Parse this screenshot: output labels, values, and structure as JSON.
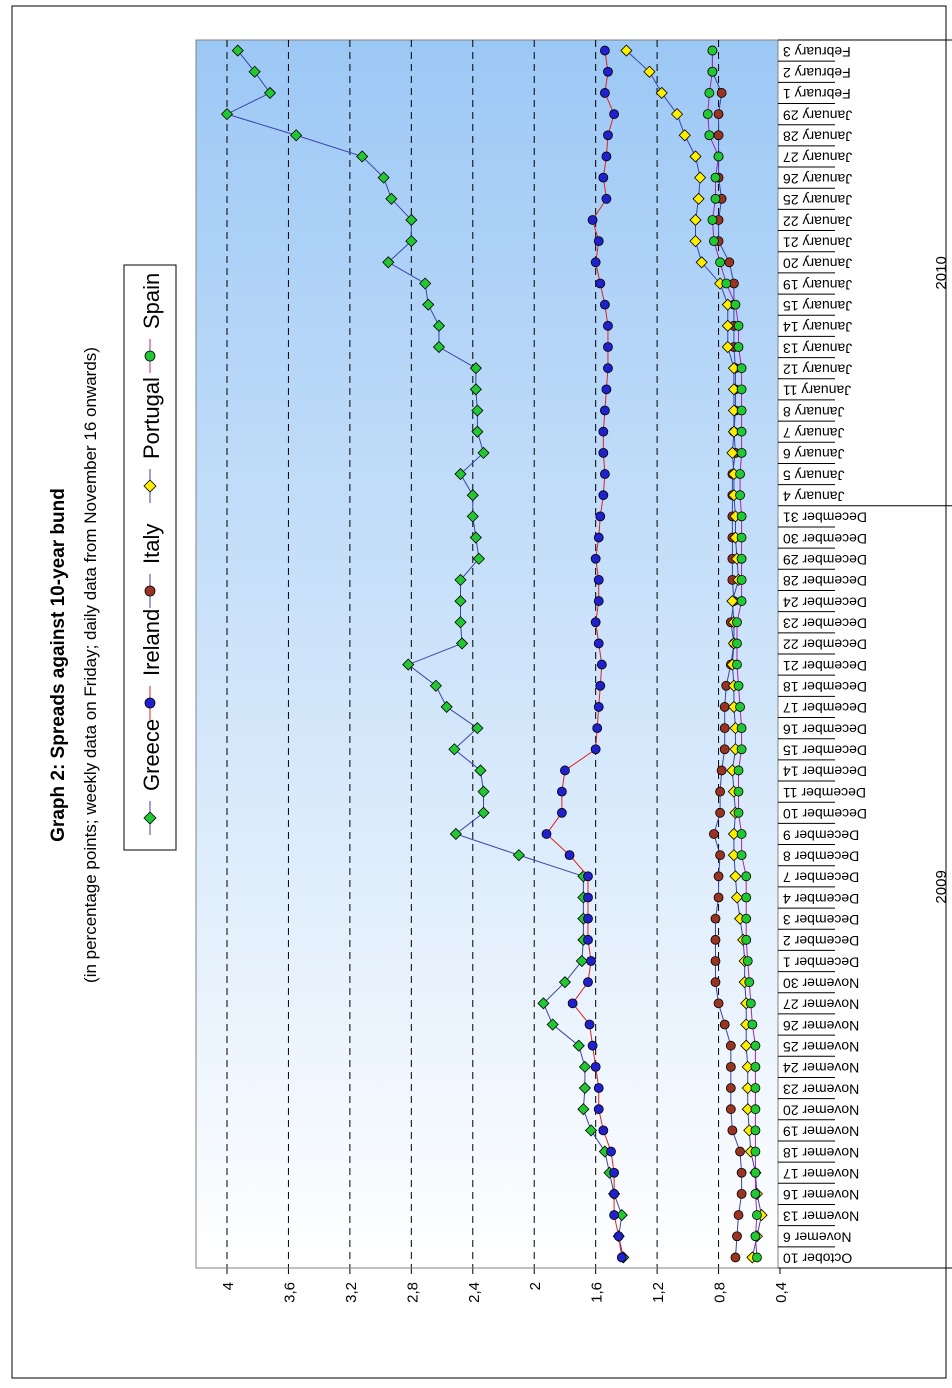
{
  "chart_data": {
    "type": "line",
    "title": "Graph 2: Spreads against 10-year bund",
    "subtitle": "(in percentage points; weekly data on Friday; daily data from November 16 onwards)",
    "categories": [
      "October 10",
      "Novemer 6",
      "Novemer 13",
      "Novemer 16",
      "Novemer 17",
      "Novemer 18",
      "Novemer 19",
      "Novemer 20",
      "Novemer 23",
      "Novemer 24",
      "Novemer 25",
      "Novemer 26",
      "Novemer 27",
      "Novemer 30",
      "December 1",
      "December 2",
      "December 3",
      "December 4",
      "December 7",
      "December 8",
      "December 9",
      "December 10",
      "December 11",
      "December 14",
      "December 15",
      "December 16",
      "December 17",
      "December 18",
      "December 21",
      "December 22",
      "December 23",
      "December 24",
      "December 28",
      "December 29",
      "December 30",
      "December 31",
      "January 4",
      "January 5",
      "January 6",
      "January 7",
      "January 8",
      "January 11",
      "January 12",
      "January 13",
      "January 14",
      "January 15",
      "January 19",
      "January 20",
      "January 21",
      "January 22",
      "January 25",
      "January 26",
      "January 27",
      "January 28",
      "January 29",
      "February 1",
      "February 2",
      "February 3"
    ],
    "year_labels": [
      {
        "label": "2009"
      },
      {
        "label": "2010"
      }
    ],
    "yticks": [
      "4",
      "3,6",
      "3,2",
      "2,8",
      "2,4",
      "2",
      "1,6",
      "1,2",
      "0,8",
      "0,4"
    ],
    "ylim": [
      0.4,
      4.2
    ],
    "grid": "dashed",
    "legend_position": "top",
    "colors": {
      "background_top": "#9cc8f5",
      "background_bottom": "#ffffff"
    },
    "series": [
      {
        "name": "Greece",
        "line_color": "#3a44a8",
        "marker_color": "#22c832",
        "marker": "diamond",
        "values": [
          1.42,
          1.45,
          1.43,
          1.48,
          1.51,
          1.54,
          1.63,
          1.68,
          1.67,
          1.67,
          1.71,
          1.88,
          1.94,
          1.8,
          1.69,
          1.68,
          1.68,
          1.68,
          1.68,
          2.1,
          2.51,
          2.33,
          2.33,
          2.35,
          2.52,
          2.37,
          2.57,
          2.64,
          2.82,
          2.47,
          2.48,
          2.48,
          2.48,
          2.36,
          2.38,
          2.4,
          2.4,
          2.48,
          2.33,
          2.37,
          2.37,
          2.38,
          2.38,
          2.62,
          2.62,
          2.69,
          2.71,
          2.95,
          2.8,
          2.8,
          2.93,
          2.98,
          3.12,
          3.55,
          4.0,
          3.72,
          3.82,
          3.93
        ]
      },
      {
        "name": "Ireland",
        "line_color": "#e02020",
        "marker_color": "#2020cc",
        "marker": "circle",
        "values": [
          1.43,
          1.45,
          1.48,
          1.48,
          1.48,
          1.5,
          1.55,
          1.58,
          1.58,
          1.6,
          1.62,
          1.64,
          1.75,
          1.65,
          1.63,
          1.65,
          1.65,
          1.65,
          1.65,
          1.77,
          1.92,
          1.82,
          1.82,
          1.8,
          1.6,
          1.59,
          1.58,
          1.57,
          1.56,
          1.58,
          1.6,
          1.58,
          1.58,
          1.6,
          1.58,
          1.57,
          1.55,
          1.54,
          1.55,
          1.55,
          1.54,
          1.53,
          1.52,
          1.52,
          1.52,
          1.54,
          1.57,
          1.6,
          1.58,
          1.62,
          1.53,
          1.55,
          1.53,
          1.52,
          1.48,
          1.54,
          1.52,
          1.54
        ]
      },
      {
        "name": "Italy",
        "line_color": "#3a44a8",
        "marker_color": "#993322",
        "marker": "circle",
        "values": [
          0.69,
          0.68,
          0.67,
          0.65,
          0.65,
          0.66,
          0.71,
          0.72,
          0.72,
          0.72,
          0.72,
          0.76,
          0.8,
          0.82,
          0.82,
          0.82,
          0.82,
          0.8,
          0.8,
          0.79,
          0.83,
          0.79,
          0.79,
          0.78,
          0.76,
          0.76,
          0.76,
          0.75,
          0.72,
          0.7,
          0.72,
          0.7,
          0.71,
          0.71,
          0.71,
          0.71,
          0.71,
          0.71,
          0.69,
          0.7,
          0.69,
          0.69,
          0.69,
          0.7,
          0.7,
          0.7,
          0.7,
          0.73,
          0.8,
          0.8,
          0.78,
          0.8,
          0.8,
          0.8,
          0.8,
          0.78,
          0.84,
          0.84
        ]
      },
      {
        "name": "Portugal",
        "line_color": "#3a44a8",
        "marker_color": "#ffee00",
        "marker": "diamond",
        "values": [
          0.58,
          0.55,
          0.52,
          0.55,
          0.56,
          0.59,
          0.6,
          0.61,
          0.61,
          0.61,
          0.62,
          0.62,
          0.62,
          0.63,
          0.63,
          0.64,
          0.66,
          0.68,
          0.69,
          0.7,
          0.7,
          0.69,
          0.7,
          0.71,
          0.69,
          0.69,
          0.7,
          0.7,
          0.71,
          0.7,
          0.7,
          0.71,
          0.67,
          0.68,
          0.69,
          0.69,
          0.7,
          0.7,
          0.71,
          0.7,
          0.7,
          0.7,
          0.7,
          0.74,
          0.74,
          0.74,
          0.79,
          0.91,
          0.95,
          0.95,
          0.93,
          0.92,
          0.95,
          1.02,
          1.07,
          1.17,
          1.25,
          1.4
        ]
      },
      {
        "name": "Spain",
        "line_color": "#b020b0",
        "marker_color": "#22c832",
        "marker": "circle",
        "values": [
          0.55,
          0.56,
          0.55,
          0.56,
          0.56,
          0.56,
          0.56,
          0.56,
          0.56,
          0.56,
          0.56,
          0.58,
          0.59,
          0.6,
          0.61,
          0.62,
          0.62,
          0.62,
          0.62,
          0.65,
          0.65,
          0.67,
          0.67,
          0.67,
          0.65,
          0.65,
          0.66,
          0.67,
          0.68,
          0.68,
          0.68,
          0.65,
          0.65,
          0.65,
          0.65,
          0.65,
          0.66,
          0.66,
          0.65,
          0.65,
          0.65,
          0.65,
          0.65,
          0.67,
          0.67,
          0.69,
          0.75,
          0.79,
          0.83,
          0.84,
          0.82,
          0.82,
          0.8,
          0.86,
          0.87,
          0.86,
          0.84,
          0.84
        ]
      }
    ]
  }
}
